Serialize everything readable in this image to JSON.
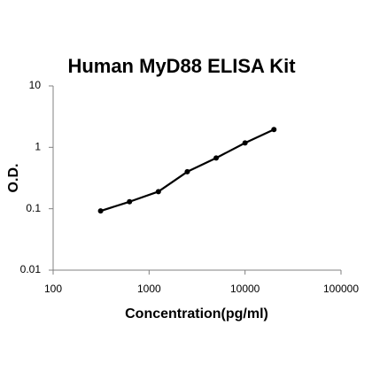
{
  "chart_data": {
    "type": "scatter",
    "title": "Human MyD88 ELISA Kit",
    "xlabel": "Concentration(pg/ml)",
    "ylabel": "O.D.",
    "x": [
      312.5,
      625,
      1250,
      2500,
      5000,
      10000,
      20000
    ],
    "values": [
      0.092,
      0.13,
      0.19,
      0.4,
      0.67,
      1.18,
      1.95
    ],
    "color": "#000000",
    "trendline": true,
    "xscale": "log",
    "yscale": "log",
    "xlim": [
      100,
      100000
    ],
    "xticks": [
      100,
      1000,
      10000,
      100000
    ],
    "ylim": [
      0.01,
      10
    ],
    "yticks": [
      0.01,
      0.1,
      1,
      10
    ]
  }
}
